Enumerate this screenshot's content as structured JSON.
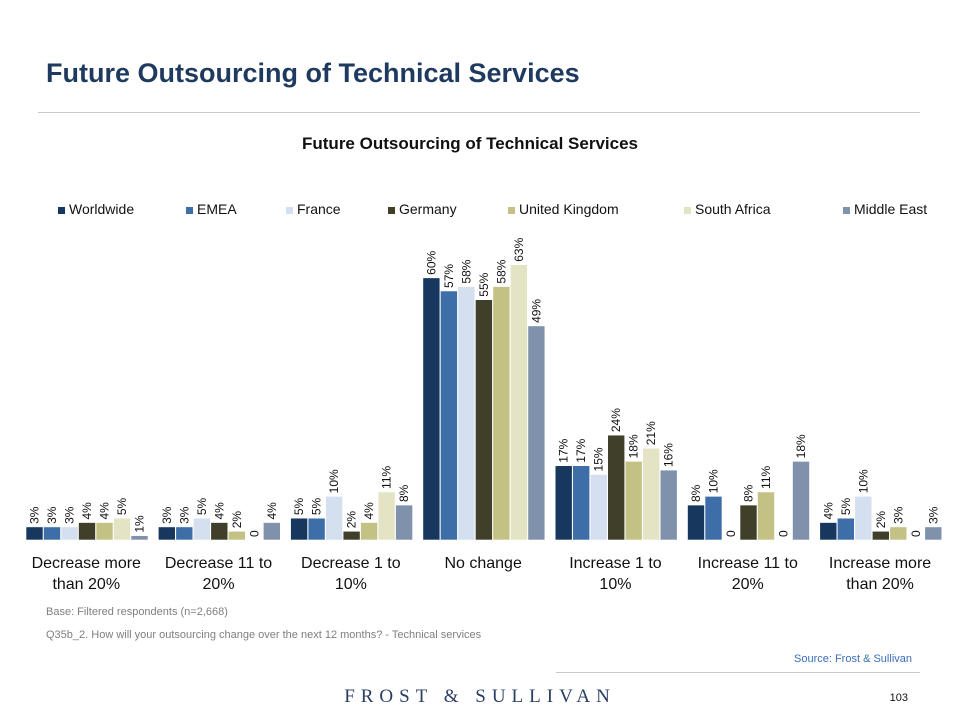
{
  "slide": {
    "title": "Future Outsourcing of Technical Services",
    "base_note": "Base: Filtered respondents (n=2,668)",
    "question_note": "Q35b_2. How will your outsourcing change over the next 12 months? - Technical services",
    "source": "Source: Frost & Sullivan",
    "brand": "FROST & SULLIVAN",
    "page_number": "103"
  },
  "chart_data": {
    "type": "bar",
    "title": "Future Outsourcing of Technical Services",
    "legend_position": "top",
    "grid": false,
    "categories": [
      [
        "Decrease more",
        "than 20%"
      ],
      [
        "Decrease 11 to",
        "20%"
      ],
      [
        "Decrease 1 to",
        "10%"
      ],
      [
        "No change"
      ],
      [
        "Increase 1 to",
        "10%"
      ],
      [
        "Increase 11 to",
        "20%"
      ],
      [
        "Increase more",
        "than 20%"
      ]
    ],
    "ylim": [
      0,
      65
    ],
    "series": [
      {
        "name": "Worldwide",
        "color": "#17375e",
        "values": [
          3,
          3,
          5,
          60,
          17,
          8,
          4
        ],
        "labels": [
          "3%",
          "3%",
          "5%",
          "60%",
          "17%",
          "8%",
          "4%"
        ]
      },
      {
        "name": "EMEA",
        "color": "#3e6ea8",
        "values": [
          3,
          3,
          5,
          57,
          17,
          10,
          5
        ],
        "labels": [
          "3%",
          "3%",
          "5%",
          "57%",
          "17%",
          "10%",
          "5%"
        ]
      },
      {
        "name": "France",
        "color": "#d4dff0",
        "values": [
          3,
          5,
          10,
          58,
          15,
          0,
          10
        ],
        "labels": [
          "3%",
          "5%",
          "10%",
          "58%",
          "15%",
          "0",
          "10%"
        ]
      },
      {
        "name": "Germany",
        "color": "#3f3f2a",
        "values": [
          4,
          4,
          2,
          55,
          24,
          8,
          2
        ],
        "labels": [
          "4%",
          "4%",
          "2%",
          "55%",
          "24%",
          "8%",
          "2%"
        ]
      },
      {
        "name": "United Kingdom",
        "color": "#c4c185",
        "values": [
          4,
          2,
          4,
          58,
          18,
          11,
          3
        ],
        "labels": [
          "4%",
          "2%",
          "4%",
          "58%",
          "18%",
          "11%",
          "3%"
        ]
      },
      {
        "name": "South Africa",
        "color": "#e4e3c4",
        "values": [
          5,
          0,
          11,
          63,
          21,
          0,
          0
        ],
        "labels": [
          "5%",
          "0",
          "11%",
          "63%",
          "21%",
          "0",
          "0"
        ]
      },
      {
        "name": "Middle East",
        "color": "#8092ab",
        "values": [
          1,
          4,
          8,
          49,
          16,
          18,
          3
        ],
        "labels": [
          "1%",
          "4%",
          "8%",
          "49%",
          "16%",
          "18%",
          "3%"
        ]
      }
    ]
  }
}
